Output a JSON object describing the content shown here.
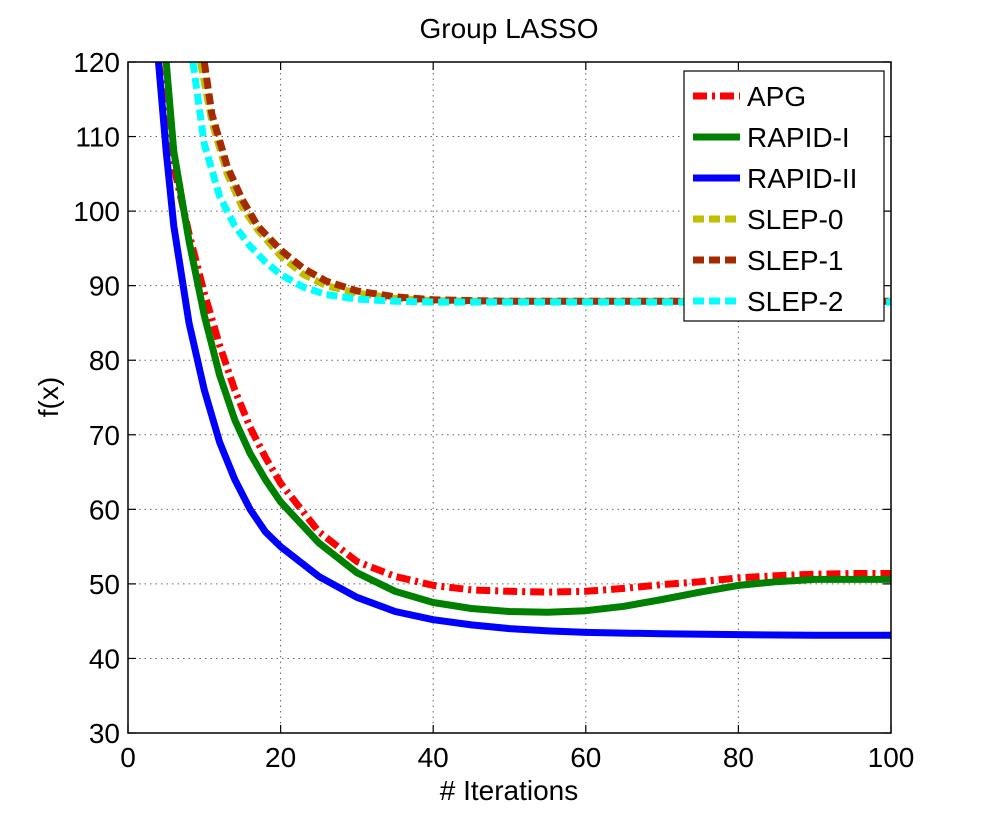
{
  "chart_data": {
    "type": "line",
    "title": "Group LASSO",
    "xlabel": "# Iterations",
    "ylabel": "f(x)",
    "xlim": [
      0,
      100
    ],
    "ylim": [
      30,
      120
    ],
    "xticks": [
      "0",
      "20",
      "40",
      "60",
      "80",
      "100"
    ],
    "yticks": [
      "30",
      "40",
      "50",
      "60",
      "70",
      "80",
      "90",
      "100",
      "110",
      "120"
    ],
    "grid": true,
    "legend_position": "top-right",
    "series": [
      {
        "name": "APG",
        "color": "#ff0000",
        "style": "dashdot",
        "x": [
          4,
          6,
          8,
          10,
          12,
          14,
          16,
          18,
          20,
          25,
          30,
          35,
          40,
          45,
          50,
          55,
          60,
          65,
          70,
          75,
          80,
          85,
          90,
          95,
          100
        ],
        "y": [
          120,
          106,
          97,
          89,
          82,
          76,
          71,
          67,
          63.5,
          57,
          53,
          51,
          49.8,
          49.2,
          49,
          48.9,
          49,
          49.4,
          49.9,
          50.3,
          50.8,
          51.1,
          51.3,
          51.4,
          51.4
        ]
      },
      {
        "name": "RAPID-I",
        "color": "#008000",
        "style": "solid",
        "x": [
          5,
          6,
          8,
          10,
          12,
          14,
          16,
          18,
          20,
          25,
          30,
          35,
          40,
          45,
          50,
          55,
          60,
          65,
          70,
          75,
          80,
          85,
          90,
          95,
          100
        ],
        "y": [
          120,
          108,
          96,
          86,
          78,
          72,
          67.5,
          64,
          61,
          55.5,
          51.5,
          49,
          47.5,
          46.7,
          46.3,
          46.2,
          46.4,
          47,
          47.9,
          48.9,
          49.8,
          50.3,
          50.6,
          50.6,
          50.6
        ]
      },
      {
        "name": "RAPID-II",
        "color": "#0000ff",
        "style": "solid",
        "x": [
          4,
          5,
          6,
          8,
          10,
          12,
          14,
          16,
          18,
          20,
          25,
          30,
          35,
          40,
          45,
          50,
          55,
          60,
          70,
          80,
          90,
          100
        ],
        "y": [
          120,
          108,
          98,
          85,
          76,
          69,
          64,
          60,
          57,
          55,
          51,
          48.2,
          46.3,
          45.2,
          44.5,
          44,
          43.7,
          43.5,
          43.3,
          43.2,
          43.1,
          43.1
        ]
      },
      {
        "name": "SLEP-0",
        "color": "#bfbf00",
        "style": "dashed",
        "x": [
          9.5,
          11,
          13,
          15,
          17,
          20,
          23,
          26,
          30,
          35,
          40,
          45,
          50,
          60,
          70,
          80,
          90,
          100
        ],
        "y": [
          120,
          112,
          105,
          100.5,
          97.5,
          94,
          91.5,
          90,
          89,
          88.3,
          88,
          87.9,
          87.9,
          87.9,
          87.9,
          87.9,
          87.9,
          87.9
        ]
      },
      {
        "name": "SLEP-1",
        "color": "#a52a00",
        "style": "dashed",
        "x": [
          10,
          11,
          13,
          15,
          17,
          20,
          23,
          26,
          30,
          35,
          40,
          45,
          50,
          60,
          70,
          80,
          90,
          100
        ],
        "y": [
          120,
          113,
          106,
          101.5,
          98,
          94.8,
          92.3,
          90.6,
          89.3,
          88.5,
          88.1,
          88,
          87.9,
          87.9,
          87.9,
          87.9,
          87.9,
          87.9
        ]
      },
      {
        "name": "SLEP-2",
        "color": "#00ffff",
        "style": "dashed",
        "x": [
          8.5,
          10,
          12,
          14,
          16,
          18,
          20,
          23,
          26,
          30,
          35,
          40,
          50,
          60,
          70,
          80,
          90,
          100
        ],
        "y": [
          120,
          109,
          102,
          98,
          95.3,
          93.2,
          91.5,
          89.8,
          88.8,
          88.2,
          87.9,
          87.8,
          87.8,
          87.8,
          87.8,
          87.8,
          87.8,
          87.8
        ]
      }
    ]
  }
}
